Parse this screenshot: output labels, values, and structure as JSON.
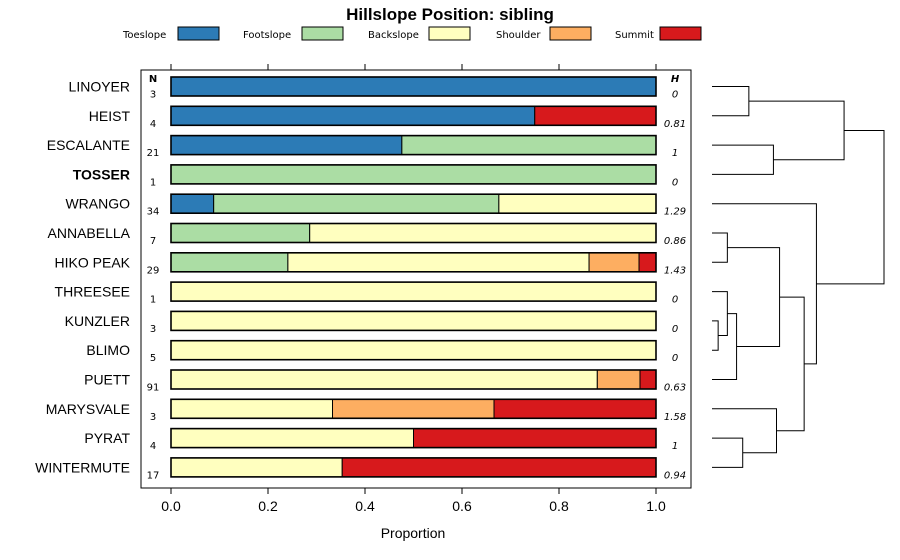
{
  "chart_data": {
    "type": "bar",
    "stacked": true,
    "orientation": "horizontal",
    "title": "Hillslope Position: sibling",
    "xlabel": "Proportion",
    "xlim": [
      0,
      1
    ],
    "xticks": [
      "0.0",
      "0.2",
      "0.4",
      "0.6",
      "0.8",
      "1.0"
    ],
    "n_header": "N",
    "h_header": "H",
    "legend_position": "top",
    "series": [
      {
        "name": "Toeslope",
        "color": "#2c7bb6"
      },
      {
        "name": "Footslope",
        "color": "#abdda4"
      },
      {
        "name": "Backslope",
        "color": "#ffffbf"
      },
      {
        "name": "Shoulder",
        "color": "#fdae61"
      },
      {
        "name": "Summit",
        "color": "#d7191c"
      }
    ],
    "rows": [
      {
        "label": "LINOYER",
        "bold": false,
        "n": "3",
        "h": "0",
        "values": [
          1.0,
          0,
          0,
          0,
          0
        ]
      },
      {
        "label": "HEIST",
        "bold": false,
        "n": "4",
        "h": "0.81",
        "values": [
          0.75,
          0,
          0,
          0,
          0.25
        ]
      },
      {
        "label": "ESCALANTE",
        "bold": false,
        "n": "21",
        "h": "1",
        "values": [
          0.476,
          0.524,
          0,
          0,
          0
        ]
      },
      {
        "label": "TOSSER",
        "bold": true,
        "n": "1",
        "h": "0",
        "values": [
          0,
          1.0,
          0,
          0,
          0
        ]
      },
      {
        "label": "WRANGO",
        "bold": false,
        "n": "34",
        "h": "1.29",
        "values": [
          0.088,
          0.588,
          0.324,
          0,
          0
        ]
      },
      {
        "label": "ANNABELLA",
        "bold": false,
        "n": "7",
        "h": "0.86",
        "values": [
          0,
          0.286,
          0.714,
          0,
          0
        ]
      },
      {
        "label": "HIKO PEAK",
        "bold": false,
        "n": "29",
        "h": "1.43",
        "values": [
          0,
          0.241,
          0.621,
          0.103,
          0.035
        ]
      },
      {
        "label": "THREESEE",
        "bold": false,
        "n": "1",
        "h": "0",
        "values": [
          0,
          0,
          1.0,
          0,
          0
        ]
      },
      {
        "label": "KUNZLER",
        "bold": false,
        "n": "3",
        "h": "0",
        "values": [
          0,
          0,
          1.0,
          0,
          0
        ]
      },
      {
        "label": "BLIMO",
        "bold": false,
        "n": "5",
        "h": "0",
        "values": [
          0,
          0,
          1.0,
          0,
          0
        ]
      },
      {
        "label": "PUETT",
        "bold": false,
        "n": "91",
        "h": "0.63",
        "values": [
          0,
          0,
          0.879,
          0.088,
          0.033
        ]
      },
      {
        "label": "MARYSVALE",
        "bold": false,
        "n": "3",
        "h": "1.58",
        "values": [
          0,
          0,
          0.333,
          0.333,
          0.334
        ]
      },
      {
        "label": "PYRAT",
        "bold": false,
        "n": "4",
        "h": "1",
        "values": [
          0,
          0,
          0.5,
          0,
          0.5
        ]
      },
      {
        "label": "WINTERMUTE",
        "bold": false,
        "n": "17",
        "h": "0.94",
        "values": [
          0,
          0,
          0.353,
          0,
          0.647
        ]
      }
    ],
    "dendrogram": {
      "merges": [
        [
          -1,
          -2,
          0.12
        ],
        [
          -3,
          -4,
          0.2
        ],
        [
          1,
          2,
          0.43
        ],
        [
          -9,
          -10,
          0.02
        ],
        [
          -8,
          4,
          0.05
        ],
        [
          5,
          -11,
          0.08
        ],
        [
          -6,
          -7,
          0.05
        ],
        [
          7,
          6,
          0.22
        ],
        [
          -13,
          -14,
          0.1
        ],
        [
          -12,
          9,
          0.21
        ],
        [
          8,
          10,
          0.3
        ],
        [
          -5,
          11,
          0.34
        ],
        [
          3,
          12,
          0.56
        ]
      ]
    }
  }
}
